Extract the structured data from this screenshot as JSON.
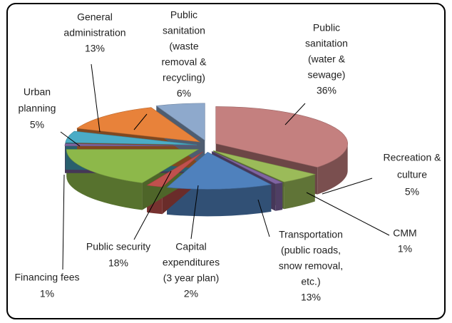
{
  "chart_data": {
    "type": "pie",
    "categories": [
      [
        "Public",
        "sanitation",
        "(water &",
        "sewage)"
      ],
      [
        "Recreation &",
        "culture"
      ],
      [
        "CMM"
      ],
      [
        "Transportation",
        "(public roads,",
        "snow removal,",
        "etc.)"
      ],
      [
        "Capital",
        "expenditures",
        "(3 year plan)"
      ],
      [
        "Public security"
      ],
      [
        "Financing fees"
      ],
      [
        "Urban",
        "planning"
      ],
      [
        "General",
        "administration"
      ],
      [
        "Public",
        "sanitation",
        "(waste",
        "removal &",
        "recycling)"
      ]
    ],
    "values": [
      36,
      5,
      1,
      13,
      2,
      18,
      1,
      5,
      13,
      6
    ],
    "value_labels": [
      "36%",
      "5%",
      "1%",
      "13%",
      "2%",
      "18%",
      "1%",
      "5%",
      "13%",
      "6%"
    ],
    "colors": [
      "#c4807f",
      "#9bbb59",
      "#8064a2",
      "#4f81bd",
      "#c0504d",
      "#8db84a",
      "#7e649e",
      "#4bacc6",
      "#e8823a",
      "#8ea9cc"
    ]
  }
}
